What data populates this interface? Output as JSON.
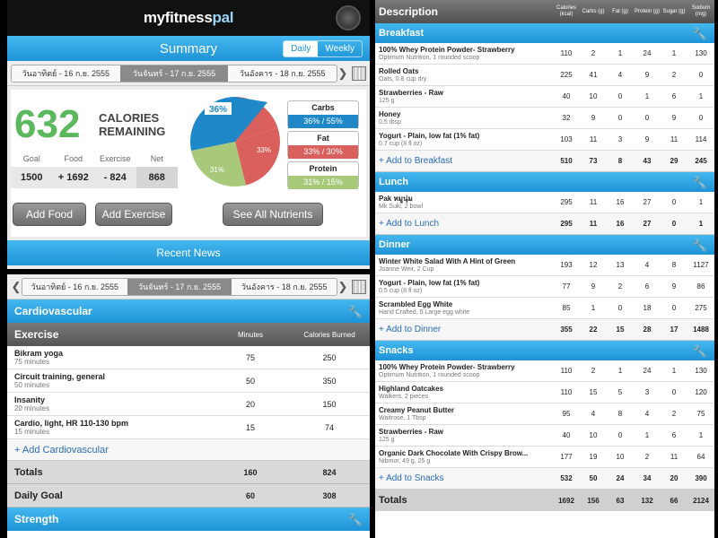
{
  "header": {
    "logo_a": "myfitness",
    "logo_b": "pal"
  },
  "summary": {
    "title": "Summary",
    "toggle_daily": "Daily",
    "toggle_weekly": "Weekly",
    "dates": [
      "วันอาทิตย์ - 16 ก.ย. 2555",
      "วันจันทร์ - 17 ก.ย. 2555",
      "วันอังคาร - 18 ก.ย. 2555"
    ],
    "calories": "632",
    "calories_label_1": "CALORIES",
    "calories_label_2": "REMAINING",
    "goal_labels": [
      "Goal",
      "Food",
      "Exercise",
      "Net"
    ],
    "goal_values": [
      "1500",
      "+ 1692",
      "- 824",
      "868"
    ],
    "add_food": "Add Food",
    "add_exercise": "Add Exercise",
    "see_all": "See All Nutrients",
    "pie": {
      "labels": [
        "36%",
        "33%",
        "31%"
      ]
    },
    "nutrients": [
      {
        "name": "Carbs",
        "value": "36% / 55%",
        "color": "#1e88c8"
      },
      {
        "name": "Fat",
        "value": "33% / 30%",
        "color": "#d9605c"
      },
      {
        "name": "Protein",
        "value": "31% / 15%",
        "color": "#a9c97a"
      }
    ],
    "recent_news": "Recent News"
  },
  "exercise": {
    "dates": [
      "วันอาทิตย์ - 16 ก.ย. 2555",
      "วันจันทร์ - 17 ก.ย. 2555",
      "วันอังคาร - 18 ก.ย. 2555"
    ],
    "section": "Cardiovascular",
    "col_name": "Exercise",
    "col_min": "Minutes",
    "col_cal": "Calories Burned",
    "rows": [
      {
        "name": "Bikram yoga",
        "sub": "75 minutes",
        "min": "75",
        "cal": "250"
      },
      {
        "name": "Circuit training, general",
        "sub": "50 minutes",
        "min": "50",
        "cal": "350"
      },
      {
        "name": "Insanity",
        "sub": "20 minutes",
        "min": "20",
        "cal": "150"
      },
      {
        "name": "Cardio, light, HR 110-130 bpm",
        "sub": "15 minutes",
        "min": "15",
        "cal": "74"
      }
    ],
    "add": "+ Add Cardiovascular",
    "totals": {
      "label": "Totals",
      "min": "160",
      "cal": "824"
    },
    "goal": {
      "label": "Daily Goal",
      "min": "60",
      "cal": "308"
    },
    "strength": "Strength"
  },
  "food": {
    "headers": {
      "desc": "Description",
      "cols": [
        "Calories (kcal)",
        "Carbs (g)",
        "Fat (g)",
        "Protein (g)",
        "Sugar (g)",
        "Sodium (mg)"
      ]
    },
    "meals": [
      {
        "name": "Breakfast",
        "items": [
          {
            "name": "100% Whey Protein Powder- Strawberry",
            "sub": "Optimum Nutrition, 1 rounded scoop",
            "v": [
              "110",
              "2",
              "1",
              "24",
              "1",
              "130"
            ]
          },
          {
            "name": "Rolled Oats",
            "sub": "Oats, 0.8 cup dry",
            "v": [
              "225",
              "41",
              "4",
              "9",
              "2",
              "0"
            ]
          },
          {
            "name": "Strawberries - Raw",
            "sub": "125 g",
            "v": [
              "40",
              "10",
              "0",
              "1",
              "6",
              "1"
            ]
          },
          {
            "name": "Honey",
            "sub": "0.5 tbsp",
            "v": [
              "32",
              "9",
              "0",
              "0",
              "9",
              "0"
            ]
          },
          {
            "name": "Yogurt - Plain, low fat (1% fat)",
            "sub": "0.7 cup (8 fl oz)",
            "v": [
              "103",
              "11",
              "3",
              "9",
              "11",
              "114"
            ]
          }
        ],
        "add": "+ Add to Breakfast",
        "tot": [
          "510",
          "73",
          "8",
          "43",
          "29",
          "245"
        ]
      },
      {
        "name": "Lunch",
        "items": [
          {
            "name": "Pak หมูนุ่ม",
            "sub": "Mk Suki, 2 bowl",
            "v": [
              "295",
              "11",
              "16",
              "27",
              "0",
              "1"
            ]
          }
        ],
        "add": "+ Add to Lunch",
        "tot": [
          "295",
          "11",
          "16",
          "27",
          "0",
          "1"
        ]
      },
      {
        "name": "Dinner",
        "items": [
          {
            "name": "Winter White Salad With A Hint of Green",
            "sub": "Joanne Weir, 2 Cup",
            "v": [
              "193",
              "12",
              "13",
              "4",
              "8",
              "1127"
            ]
          },
          {
            "name": "Yogurt - Plain, low fat (1% fat)",
            "sub": "0.5 cup (8 fl oz)",
            "v": [
              "77",
              "9",
              "2",
              "6",
              "9",
              "86"
            ]
          },
          {
            "name": "Scrambled Egg White",
            "sub": "Hand Crafted, 5 Large egg white",
            "v": [
              "85",
              "1",
              "0",
              "18",
              "0",
              "275"
            ]
          }
        ],
        "add": "+ Add to Dinner",
        "tot": [
          "355",
          "22",
          "15",
          "28",
          "17",
          "1488"
        ]
      },
      {
        "name": "Snacks",
        "items": [
          {
            "name": "100% Whey Protein Powder- Strawberry",
            "sub": "Optimum Nutrition, 1 rounded scoop",
            "v": [
              "110",
              "2",
              "1",
              "24",
              "1",
              "130"
            ]
          },
          {
            "name": "Highland Oatcakes",
            "sub": "Walkers, 2 pieces",
            "v": [
              "110",
              "15",
              "5",
              "3",
              "0",
              "120"
            ]
          },
          {
            "name": "Creamy Peanut Butter",
            "sub": "Waitrose, 1 Tbsp",
            "v": [
              "95",
              "4",
              "8",
              "4",
              "2",
              "75"
            ]
          },
          {
            "name": "Strawberries - Raw",
            "sub": "125 g",
            "v": [
              "40",
              "10",
              "0",
              "1",
              "6",
              "1"
            ]
          },
          {
            "name": "Organic Dark Chocolate With Crispy Brow...",
            "sub": "Nibmor, 49 g, 25 g",
            "v": [
              "177",
              "19",
              "10",
              "2",
              "11",
              "64"
            ]
          }
        ],
        "add": "+ Add to Snacks",
        "tot": [
          "532",
          "50",
          "24",
          "34",
          "20",
          "390"
        ]
      }
    ],
    "totals": {
      "label": "Totals",
      "v": [
        "1692",
        "156",
        "63",
        "132",
        "66",
        "2124"
      ]
    }
  }
}
